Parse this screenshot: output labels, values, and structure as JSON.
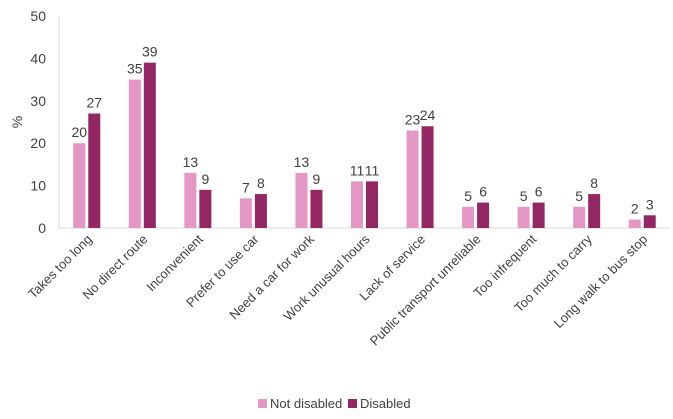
{
  "chart_data": {
    "type": "bar",
    "title": "",
    "xlabel": "",
    "ylabel": "%",
    "ylim": [
      0,
      50
    ],
    "yticks": [
      0,
      10,
      20,
      30,
      40,
      50
    ],
    "grid": false,
    "legend_position": "bottom",
    "categories": [
      "Takes too long",
      "No direct route",
      "Inconvenient",
      "Prefer to use car",
      "Need a car for work",
      "Work unusual hours",
      "Lack of service",
      "Public transport unreliable",
      "Too infrequent",
      "Too much to carry",
      "Long walk to bus stop"
    ],
    "series": [
      {
        "name": "Not disabled",
        "color": "#e497c4",
        "values": [
          20,
          35,
          13,
          7,
          13,
          11,
          23,
          5,
          5,
          5,
          2
        ]
      },
      {
        "name": "Disabled",
        "color": "#922763",
        "values": [
          27,
          39,
          9,
          8,
          9,
          11,
          24,
          6,
          6,
          8,
          3
        ]
      }
    ]
  }
}
